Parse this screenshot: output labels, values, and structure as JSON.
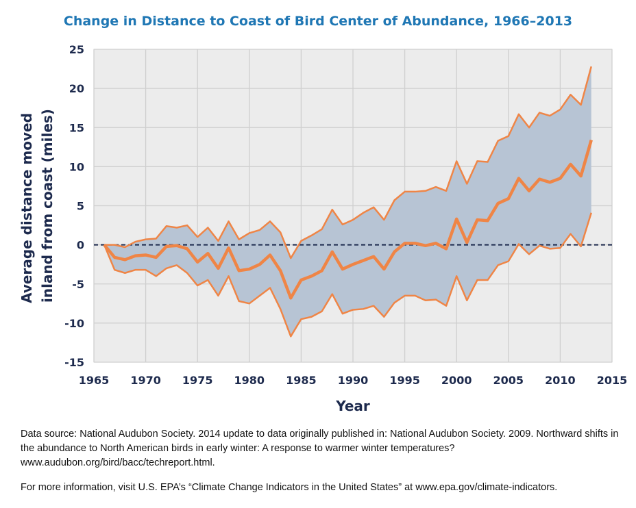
{
  "chart_data": {
    "type": "area",
    "title": "Change in Distance to Coast of Bird Center of Abundance, 1966–2013",
    "xlabel": "Year",
    "ylabel": "Average distance moved inland from coast (miles)",
    "xlim": [
      1965,
      2015
    ],
    "ylim": [
      -15,
      25
    ],
    "x_ticks": [
      1965,
      1970,
      1975,
      1980,
      1985,
      1990,
      1995,
      2000,
      2005,
      2010,
      2015
    ],
    "y_ticks": [
      25,
      20,
      15,
      10,
      5,
      0,
      -5,
      -10,
      -15
    ],
    "grid": true,
    "reference_line": 0,
    "colors": {
      "band": "#b7c4d4",
      "line": "#ef8546",
      "ref": "#1d2a4d",
      "grid": "#cfcfcf",
      "plot_bg": "#ececec"
    },
    "x": [
      1966,
      1967,
      1968,
      1969,
      1970,
      1971,
      1972,
      1973,
      1974,
      1975,
      1976,
      1977,
      1978,
      1979,
      1980,
      1981,
      1982,
      1983,
      1984,
      1985,
      1986,
      1987,
      1988,
      1989,
      1990,
      1991,
      1992,
      1993,
      1994,
      1995,
      1996,
      1997,
      1998,
      1999,
      2000,
      2001,
      2002,
      2003,
      2004,
      2005,
      2006,
      2007,
      2008,
      2009,
      2010,
      2011,
      2012,
      2013
    ],
    "series": [
      {
        "role": "upper",
        "values": [
          0,
          0,
          -0.3,
          0.4,
          0.7,
          0.8,
          2.4,
          2.2,
          2.5,
          1,
          2.2,
          0.5,
          3,
          0.7,
          1.5,
          1.9,
          3,
          1.6,
          -1.7,
          0.5,
          1.2,
          2,
          4.5,
          2.6,
          3.2,
          4.1,
          4.8,
          3.2,
          5.7,
          6.8,
          6.8,
          6.9,
          7.4,
          6.9,
          10.7,
          7.8,
          10.7,
          10.6,
          13.3,
          13.9,
          16.7,
          15,
          16.9,
          16.5,
          17.3,
          19.2,
          17.9,
          22.8
        ]
      },
      {
        "role": "mean",
        "values": [
          0,
          -1.6,
          -1.9,
          -1.4,
          -1.3,
          -1.6,
          -0.2,
          -0.1,
          -0.5,
          -2.2,
          -1.1,
          -3,
          -0.4,
          -3.3,
          -3.1,
          -2.5,
          -1.3,
          -3.3,
          -6.8,
          -4.5,
          -4,
          -3.3,
          -0.9,
          -3.1,
          -2.5,
          -2,
          -1.5,
          -3.1,
          -0.9,
          0.2,
          0.2,
          -0.1,
          0.2,
          -0.5,
          3.3,
          0.3,
          3.2,
          3.1,
          5.3,
          5.9,
          8.5,
          6.9,
          8.4,
          8,
          8.5,
          10.3,
          8.8,
          13.4
        ]
      },
      {
        "role": "lower",
        "values": [
          0,
          -3.2,
          -3.6,
          -3.2,
          -3.2,
          -4,
          -3,
          -2.6,
          -3.6,
          -5.2,
          -4.5,
          -6.5,
          -4,
          -7.2,
          -7.5,
          -6.5,
          -5.5,
          -8.2,
          -11.7,
          -9.5,
          -9.2,
          -8.5,
          -6.3,
          -8.8,
          -8.3,
          -8.2,
          -7.8,
          -9.2,
          -7.4,
          -6.5,
          -6.5,
          -7.1,
          -7,
          -7.8,
          -4,
          -7.1,
          -4.5,
          -4.5,
          -2.6,
          -2.1,
          0.1,
          -1.2,
          -0.1,
          -0.5,
          -0.4,
          1.4,
          -0.2,
          4.1
        ]
      }
    ]
  },
  "notes": {
    "source": "Data source: National Audubon Society. 2014 update to data originally published in: National Audubon Society. 2009. Northward shifts in the abundance to North American birds in early winter: A response to warmer winter temperatures? www.audubon.org/bird/bacc/techreport.html.",
    "info": "For more information, visit U.S. EPA’s “Climate Change Indicators in the United States” at www.epa.gov/climate-indicators."
  }
}
